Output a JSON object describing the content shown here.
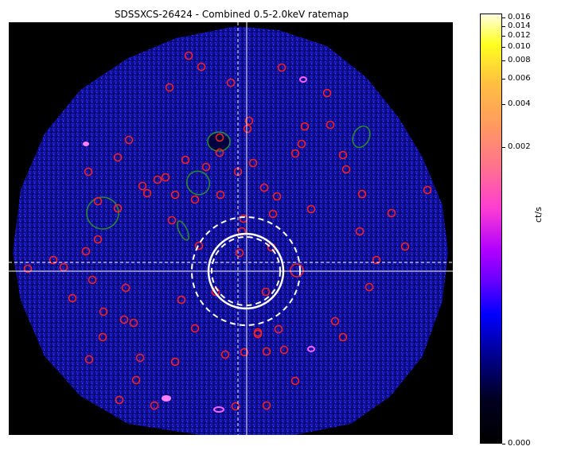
{
  "title": "SDSSXCS-26424 - Combined 0.5-2.0keV ratemap",
  "colorbar": {
    "label": "ct/s",
    "ticks": [
      "0.016",
      "0.014",
      "0.012",
      "0.010",
      "0.008",
      "0.006",
      "0.004",
      "0.002",
      "0.000"
    ]
  },
  "colors": {
    "background": "#000000",
    "emission": "#1a1aff",
    "point_source_region": "#ff2020",
    "extended_region": "#2e8b2e",
    "annulus": "#ffffff",
    "crosshair": "#ffffff"
  }
}
